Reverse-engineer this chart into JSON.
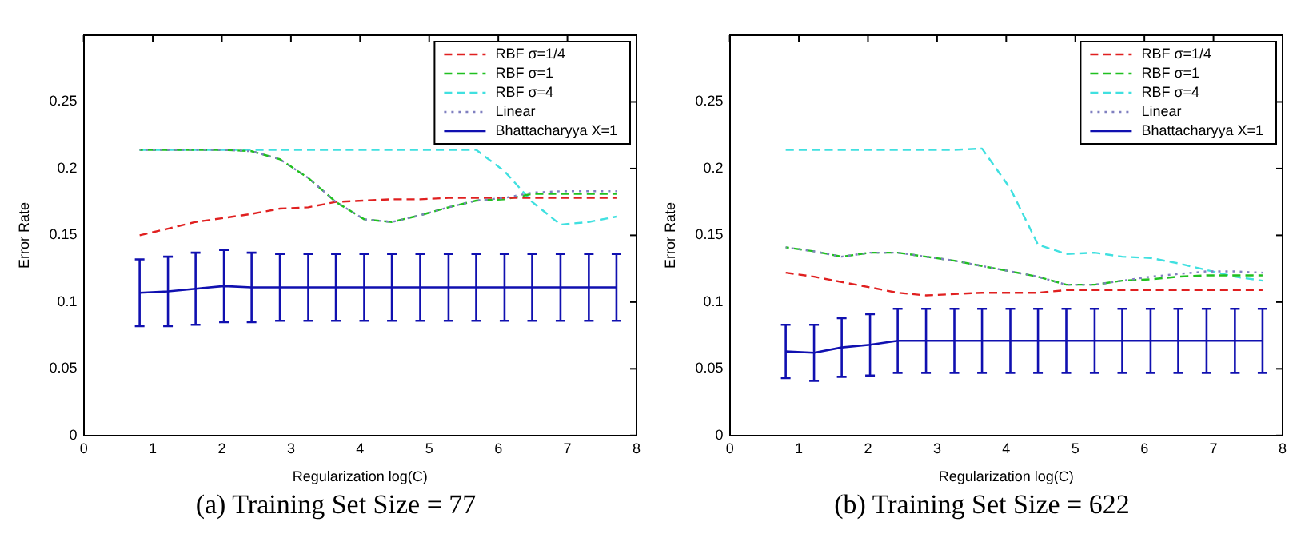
{
  "chart_data": [
    {
      "type": "line",
      "title": "(a) Training Set Size = 77",
      "xlabel": "Regularization log(C)",
      "ylabel": "Error Rate",
      "xlim": [
        0,
        8
      ],
      "xticks": [
        0,
        1,
        2,
        3,
        4,
        5,
        6,
        7,
        8
      ],
      "ylim": [
        0,
        0.3
      ],
      "yticks": [
        0,
        0.05,
        0.1,
        0.15,
        0.2,
        0.25
      ],
      "grid": false,
      "legend": "top right",
      "marker": "none",
      "x": [
        0.81,
        1.22,
        1.62,
        2.03,
        2.43,
        2.84,
        3.25,
        3.65,
        4.06,
        4.46,
        4.87,
        5.28,
        5.68,
        6.09,
        6.49,
        6.9,
        7.31,
        7.71
      ],
      "series": [
        {
          "name": "RBF σ=1/4",
          "color": "#e02020",
          "line_style": "dashed",
          "values": [
            0.15,
            0.155,
            0.16,
            0.163,
            0.166,
            0.17,
            0.171,
            0.175,
            0.176,
            0.177,
            0.177,
            0.178,
            0.178,
            0.178,
            0.178,
            0.178,
            0.178,
            0.178
          ]
        },
        {
          "name": "RBF σ=1",
          "color": "#20c020",
          "line_style": "dashed",
          "values": [
            0.214,
            0.214,
            0.214,
            0.214,
            0.213,
            0.207,
            0.193,
            0.175,
            0.162,
            0.16,
            0.165,
            0.171,
            0.176,
            0.177,
            0.181,
            0.181,
            0.181,
            0.181
          ]
        },
        {
          "name": "RBF σ=4",
          "color": "#40e0e0",
          "line_style": "dashed",
          "values": [
            0.214,
            0.214,
            0.214,
            0.214,
            0.214,
            0.214,
            0.214,
            0.214,
            0.214,
            0.214,
            0.214,
            0.214,
            0.214,
            0.198,
            0.175,
            0.158,
            0.16,
            0.164
          ]
        },
        {
          "name": "Linear",
          "color": "#8080c0",
          "line_style": "dotted",
          "values": [
            0.214,
            0.214,
            0.214,
            0.214,
            0.213,
            0.207,
            0.193,
            0.175,
            0.162,
            0.16,
            0.165,
            0.171,
            0.176,
            0.178,
            0.182,
            0.183,
            0.183,
            0.183
          ]
        },
        {
          "name": "Bhattacharyya X=1",
          "color": "#1010b0",
          "line_style": "solid",
          "values": [
            0.107,
            0.108,
            0.11,
            0.112,
            0.111,
            0.111,
            0.111,
            0.111,
            0.111,
            0.111,
            0.111,
            0.111,
            0.111,
            0.111,
            0.111,
            0.111,
            0.111,
            0.111
          ],
          "errors": [
            0.025,
            0.026,
            0.027,
            0.027,
            0.026,
            0.025,
            0.025,
            0.025,
            0.025,
            0.025,
            0.025,
            0.025,
            0.025,
            0.025,
            0.025,
            0.025,
            0.025,
            0.025
          ]
        }
      ]
    },
    {
      "type": "line",
      "title": "(b) Training Set Size = 622",
      "xlabel": "Regularization log(C)",
      "ylabel": "Error Rate",
      "xlim": [
        0,
        8
      ],
      "xticks": [
        0,
        1,
        2,
        3,
        4,
        5,
        6,
        7,
        8
      ],
      "ylim": [
        0,
        0.3
      ],
      "yticks": [
        0,
        0.05,
        0.1,
        0.15,
        0.2,
        0.25
      ],
      "grid": false,
      "legend": "top right",
      "marker": "none",
      "x": [
        0.81,
        1.22,
        1.62,
        2.03,
        2.43,
        2.84,
        3.25,
        3.65,
        4.06,
        4.46,
        4.87,
        5.28,
        5.68,
        6.09,
        6.49,
        6.9,
        7.31,
        7.71
      ],
      "series": [
        {
          "name": "RBF σ=1/4",
          "color": "#e02020",
          "line_style": "dashed",
          "values": [
            0.122,
            0.119,
            0.115,
            0.111,
            0.107,
            0.105,
            0.106,
            0.107,
            0.107,
            0.107,
            0.109,
            0.109,
            0.109,
            0.109,
            0.109,
            0.109,
            0.109,
            0.109
          ]
        },
        {
          "name": "RBF σ=1",
          "color": "#20c020",
          "line_style": "dashed",
          "values": [
            0.141,
            0.138,
            0.134,
            0.137,
            0.137,
            0.134,
            0.131,
            0.127,
            0.123,
            0.119,
            0.113,
            0.113,
            0.116,
            0.117,
            0.119,
            0.12,
            0.12,
            0.12
          ]
        },
        {
          "name": "RBF σ=4",
          "color": "#40e0e0",
          "line_style": "dashed",
          "values": [
            0.214,
            0.214,
            0.214,
            0.214,
            0.214,
            0.214,
            0.214,
            0.215,
            0.185,
            0.143,
            0.136,
            0.137,
            0.134,
            0.133,
            0.129,
            0.124,
            0.119,
            0.116
          ]
        },
        {
          "name": "Linear",
          "color": "#8080c0",
          "line_style": "dotted",
          "values": [
            0.141,
            0.138,
            0.134,
            0.137,
            0.137,
            0.134,
            0.131,
            0.127,
            0.123,
            0.119,
            0.113,
            0.113,
            0.116,
            0.119,
            0.121,
            0.123,
            0.123,
            0.122
          ]
        },
        {
          "name": "Bhattacharyya X=1",
          "color": "#1010b0",
          "line_style": "solid",
          "values": [
            0.063,
            0.062,
            0.066,
            0.068,
            0.071,
            0.071,
            0.071,
            0.071,
            0.071,
            0.071,
            0.071,
            0.071,
            0.071,
            0.071,
            0.071,
            0.071,
            0.071,
            0.071
          ],
          "errors": [
            0.02,
            0.021,
            0.022,
            0.023,
            0.024,
            0.024,
            0.024,
            0.024,
            0.024,
            0.024,
            0.024,
            0.024,
            0.024,
            0.024,
            0.024,
            0.024,
            0.024,
            0.024
          ]
        }
      ]
    }
  ]
}
